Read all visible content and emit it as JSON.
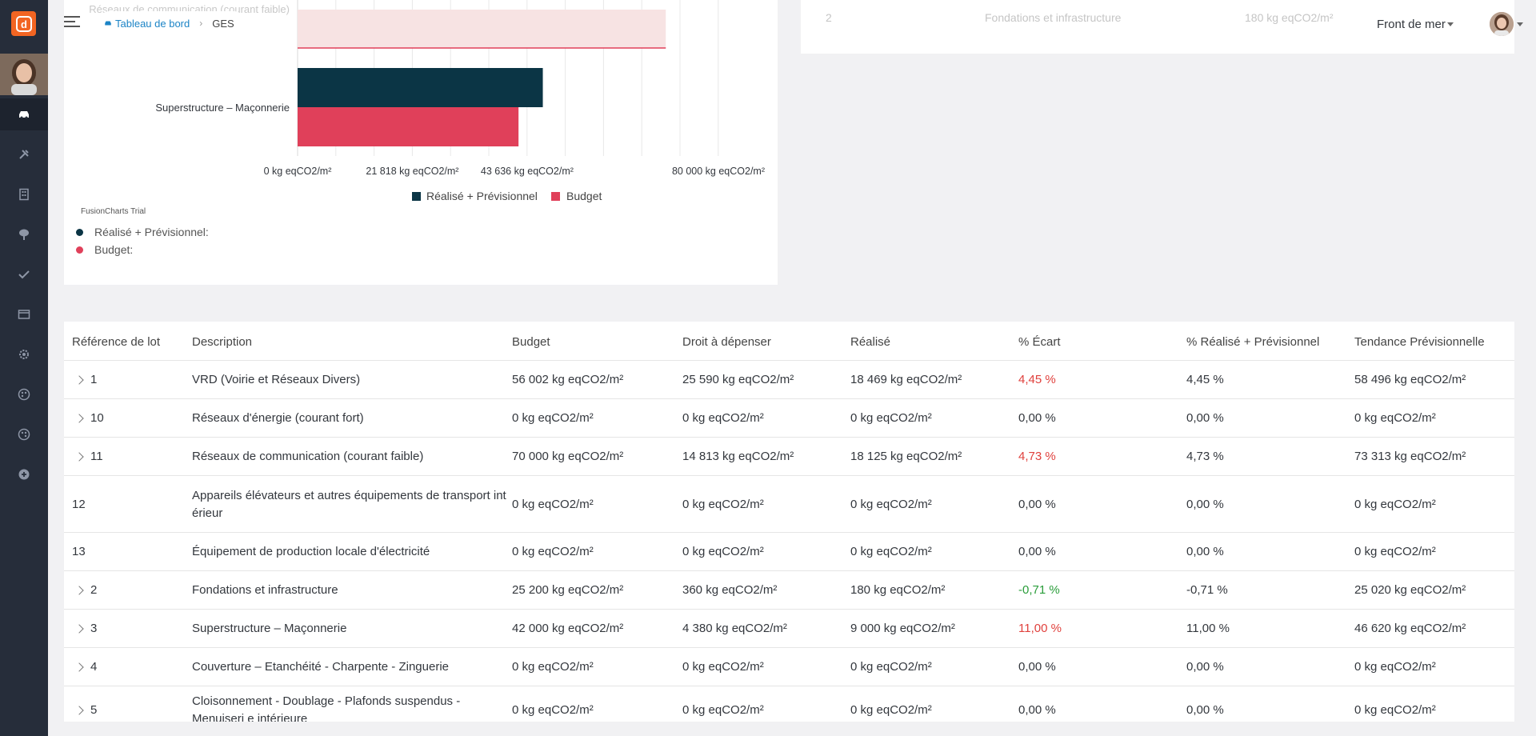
{
  "app": {
    "logo_letter": "d"
  },
  "breadcrumb": {
    "home": "Tableau de bord",
    "current": "GES"
  },
  "header": {
    "project": "Front de mer"
  },
  "colors": {
    "realise": "#0b3545",
    "budget": "#e0405a",
    "budget_light": "#f8e0e0",
    "red_text": "#e0413d",
    "green_text": "#2a9d3a"
  },
  "chart_data": {
    "type": "bar",
    "orientation": "horizontal",
    "unit": "kg eqCO2/m²",
    "categories": [
      "Réseaux de communication (courant faible)",
      "Superstructure – Maçonnerie"
    ],
    "series": [
      {
        "name": "Réalisé + Prévisionnel",
        "values": [
          73313,
          46620
        ],
        "color": "#0b3545"
      },
      {
        "name": "Budget",
        "values": [
          70000,
          42000
        ],
        "color": "#e0405a"
      }
    ],
    "xlim": [
      0,
      80000
    ],
    "xticks": [
      "0 kg eqCO2/m²",
      "21 818 kg eqCO2/m²",
      "43 636 kg eqCO2/m²",
      "80 000 kg eqCO2/m²"
    ],
    "legend": [
      "Réalisé + Prévisionnel",
      "Budget"
    ],
    "legend_position": "bottom",
    "watermark": "FusionCharts Trial"
  },
  "chart_summary": {
    "realise_label": "Réalisé + Prévisionnel:",
    "budget_label": "Budget:"
  },
  "top_card": {
    "ref": "2",
    "description": "Fondations et infrastructure",
    "budget": "180 kg eqCO2/m²"
  },
  "table": {
    "headers": [
      "Référence de lot",
      "Description",
      "Budget",
      "Droit à dépenser",
      "Réalisé",
      "% Écart",
      "% Réalisé + Prévisionnel",
      "Tendance Prévisionnelle"
    ],
    "rows": [
      {
        "ref": "1",
        "expandable": true,
        "description": "VRD (Voirie et Réseaux Divers)",
        "budget": "56 002 kg eqCO2/m²",
        "droit": "25 590 kg eqCO2/m²",
        "realise": "18 469 kg eqCO2/m²",
        "ecart": "4,45 %",
        "ecart_color": "red",
        "pct": "4,45 %",
        "tendance": "58 496 kg eqCO2/m²"
      },
      {
        "ref": "10",
        "expandable": true,
        "description": "Réseaux d'énergie (courant fort)",
        "budget": "0 kg eqCO2/m²",
        "droit": "0 kg eqCO2/m²",
        "realise": "0 kg eqCO2/m²",
        "ecart": "0,00 %",
        "ecart_color": "none",
        "pct": "0,00 %",
        "tendance": "0 kg eqCO2/m²"
      },
      {
        "ref": "11",
        "expandable": true,
        "description": "Réseaux de communication (courant faible)",
        "budget": "70 000 kg eqCO2/m²",
        "droit": "14 813 kg eqCO2/m²",
        "realise": "18 125 kg eqCO2/m²",
        "ecart": "4,73 %",
        "ecart_color": "red",
        "pct": "4,73 %",
        "tendance": "73 313 kg eqCO2/m²"
      },
      {
        "ref": "12",
        "expandable": false,
        "description": "Appareils élévateurs et autres équipements de transport int érieur",
        "budget": "0 kg eqCO2/m²",
        "droit": "0 kg eqCO2/m²",
        "realise": "0 kg eqCO2/m²",
        "ecart": "0,00 %",
        "ecart_color": "none",
        "pct": "0,00 %",
        "tendance": "0 kg eqCO2/m²"
      },
      {
        "ref": "13",
        "expandable": false,
        "description": "Équipement de production locale d'électricité",
        "budget": "0 kg eqCO2/m²",
        "droit": "0 kg eqCO2/m²",
        "realise": "0 kg eqCO2/m²",
        "ecart": "0,00 %",
        "ecart_color": "none",
        "pct": "0,00 %",
        "tendance": "0 kg eqCO2/m²"
      },
      {
        "ref": "2",
        "expandable": true,
        "description": "Fondations et infrastructure",
        "budget": "25 200 kg eqCO2/m²",
        "droit": "360 kg eqCO2/m²",
        "realise": "180 kg eqCO2/m²",
        "ecart": "-0,71 %",
        "ecart_color": "green",
        "pct": "-0,71 %",
        "tendance": "25 020 kg eqCO2/m²"
      },
      {
        "ref": "3",
        "expandable": true,
        "description": "Superstructure – Maçonnerie",
        "budget": "42 000 kg eqCO2/m²",
        "droit": "4 380 kg eqCO2/m²",
        "realise": "9 000 kg eqCO2/m²",
        "ecart": "11,00 %",
        "ecart_color": "red",
        "pct": "11,00 %",
        "tendance": "46 620 kg eqCO2/m²"
      },
      {
        "ref": "4",
        "expandable": true,
        "description": "Couverture – Etanchéité - Charpente - Zinguerie",
        "budget": "0 kg eqCO2/m²",
        "droit": "0 kg eqCO2/m²",
        "realise": "0 kg eqCO2/m²",
        "ecart": "0,00 %",
        "ecart_color": "none",
        "pct": "0,00 %",
        "tendance": "0 kg eqCO2/m²"
      },
      {
        "ref": "5",
        "expandable": true,
        "description": "Cloisonnement - Doublage - Plafonds suspendus - Menuiseri e intérieure",
        "budget": "0 kg eqCO2/m²",
        "droit": "0 kg eqCO2/m²",
        "realise": "0 kg eqCO2/m²",
        "ecart": "0,00 %",
        "ecart_color": "none",
        "pct": "0,00 %",
        "tendance": "0 kg eqCO2/m²"
      }
    ]
  }
}
